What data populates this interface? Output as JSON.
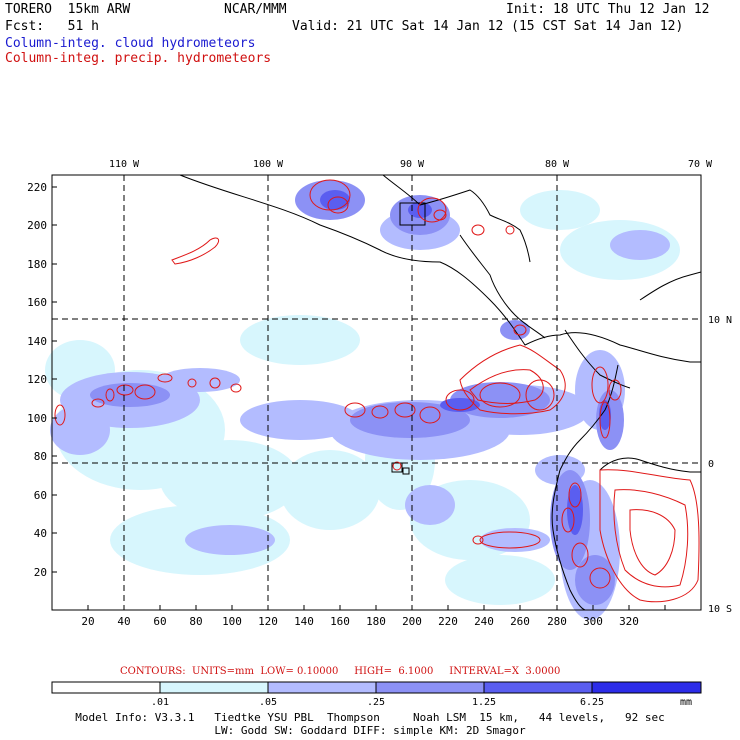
{
  "header": {
    "model": "TORERO  15km ARW",
    "org": "NCAR/MMM",
    "init": "Init: 18 UTC Thu 12 Jan 12",
    "fcst": "Fcst:   51 h",
    "valid": "Valid: 21 UTC Sat 14 Jan 12 (15 CST Sat 14 Jan 12)",
    "field_blue": "Column-integ. cloud hydrometeors",
    "field_red": "Column-integ. precip. hydrometeors"
  },
  "axes": {
    "x_ticks": [
      "20",
      "40",
      "60",
      "80",
      "100",
      "120",
      "140",
      "160",
      "180",
      "200",
      "220",
      "240",
      "260",
      "280",
      "300",
      "320"
    ],
    "y_ticks": [
      "20",
      "40",
      "60",
      "80",
      "100",
      "120",
      "140",
      "160",
      "180",
      "200",
      "220"
    ],
    "lon_labels": [
      "110 W",
      "100 W",
      "90 W",
      "80 W",
      "70 W"
    ],
    "lat_labels": [
      "10 N",
      "0",
      "10 S"
    ]
  },
  "contours_info": {
    "text": "CONTOURS:  UNITS=mm  LOW= 0.10000     HIGH=  6.1000     INTERVAL=X  3.0000"
  },
  "colorbar": {
    "labels": [
      ".01",
      ".05",
      ".25",
      "1.25",
      "6.25"
    ],
    "units": "mm",
    "colors": [
      "#ffffff",
      "#d7f6fd",
      "#b3bcff",
      "#8c91f5",
      "#5a5ef0",
      "#2c2ce8"
    ]
  },
  "footer": {
    "line1": "Model Info: V3.3.1   Tiedtke YSU PBL  Thompson     Noah LSM  15 km,   44 levels,   92 sec",
    "line2": "LW: Godd SW: Goddard DIFF: simple KM: 2D Smagor"
  },
  "colors": {
    "cloud_light": "#d7f6fd",
    "cloud_mid": "#b3bcff",
    "cloud_dark": "#8c91f5",
    "cloud_deep": "#5a5ef0",
    "precip_contour": "#e01818"
  }
}
